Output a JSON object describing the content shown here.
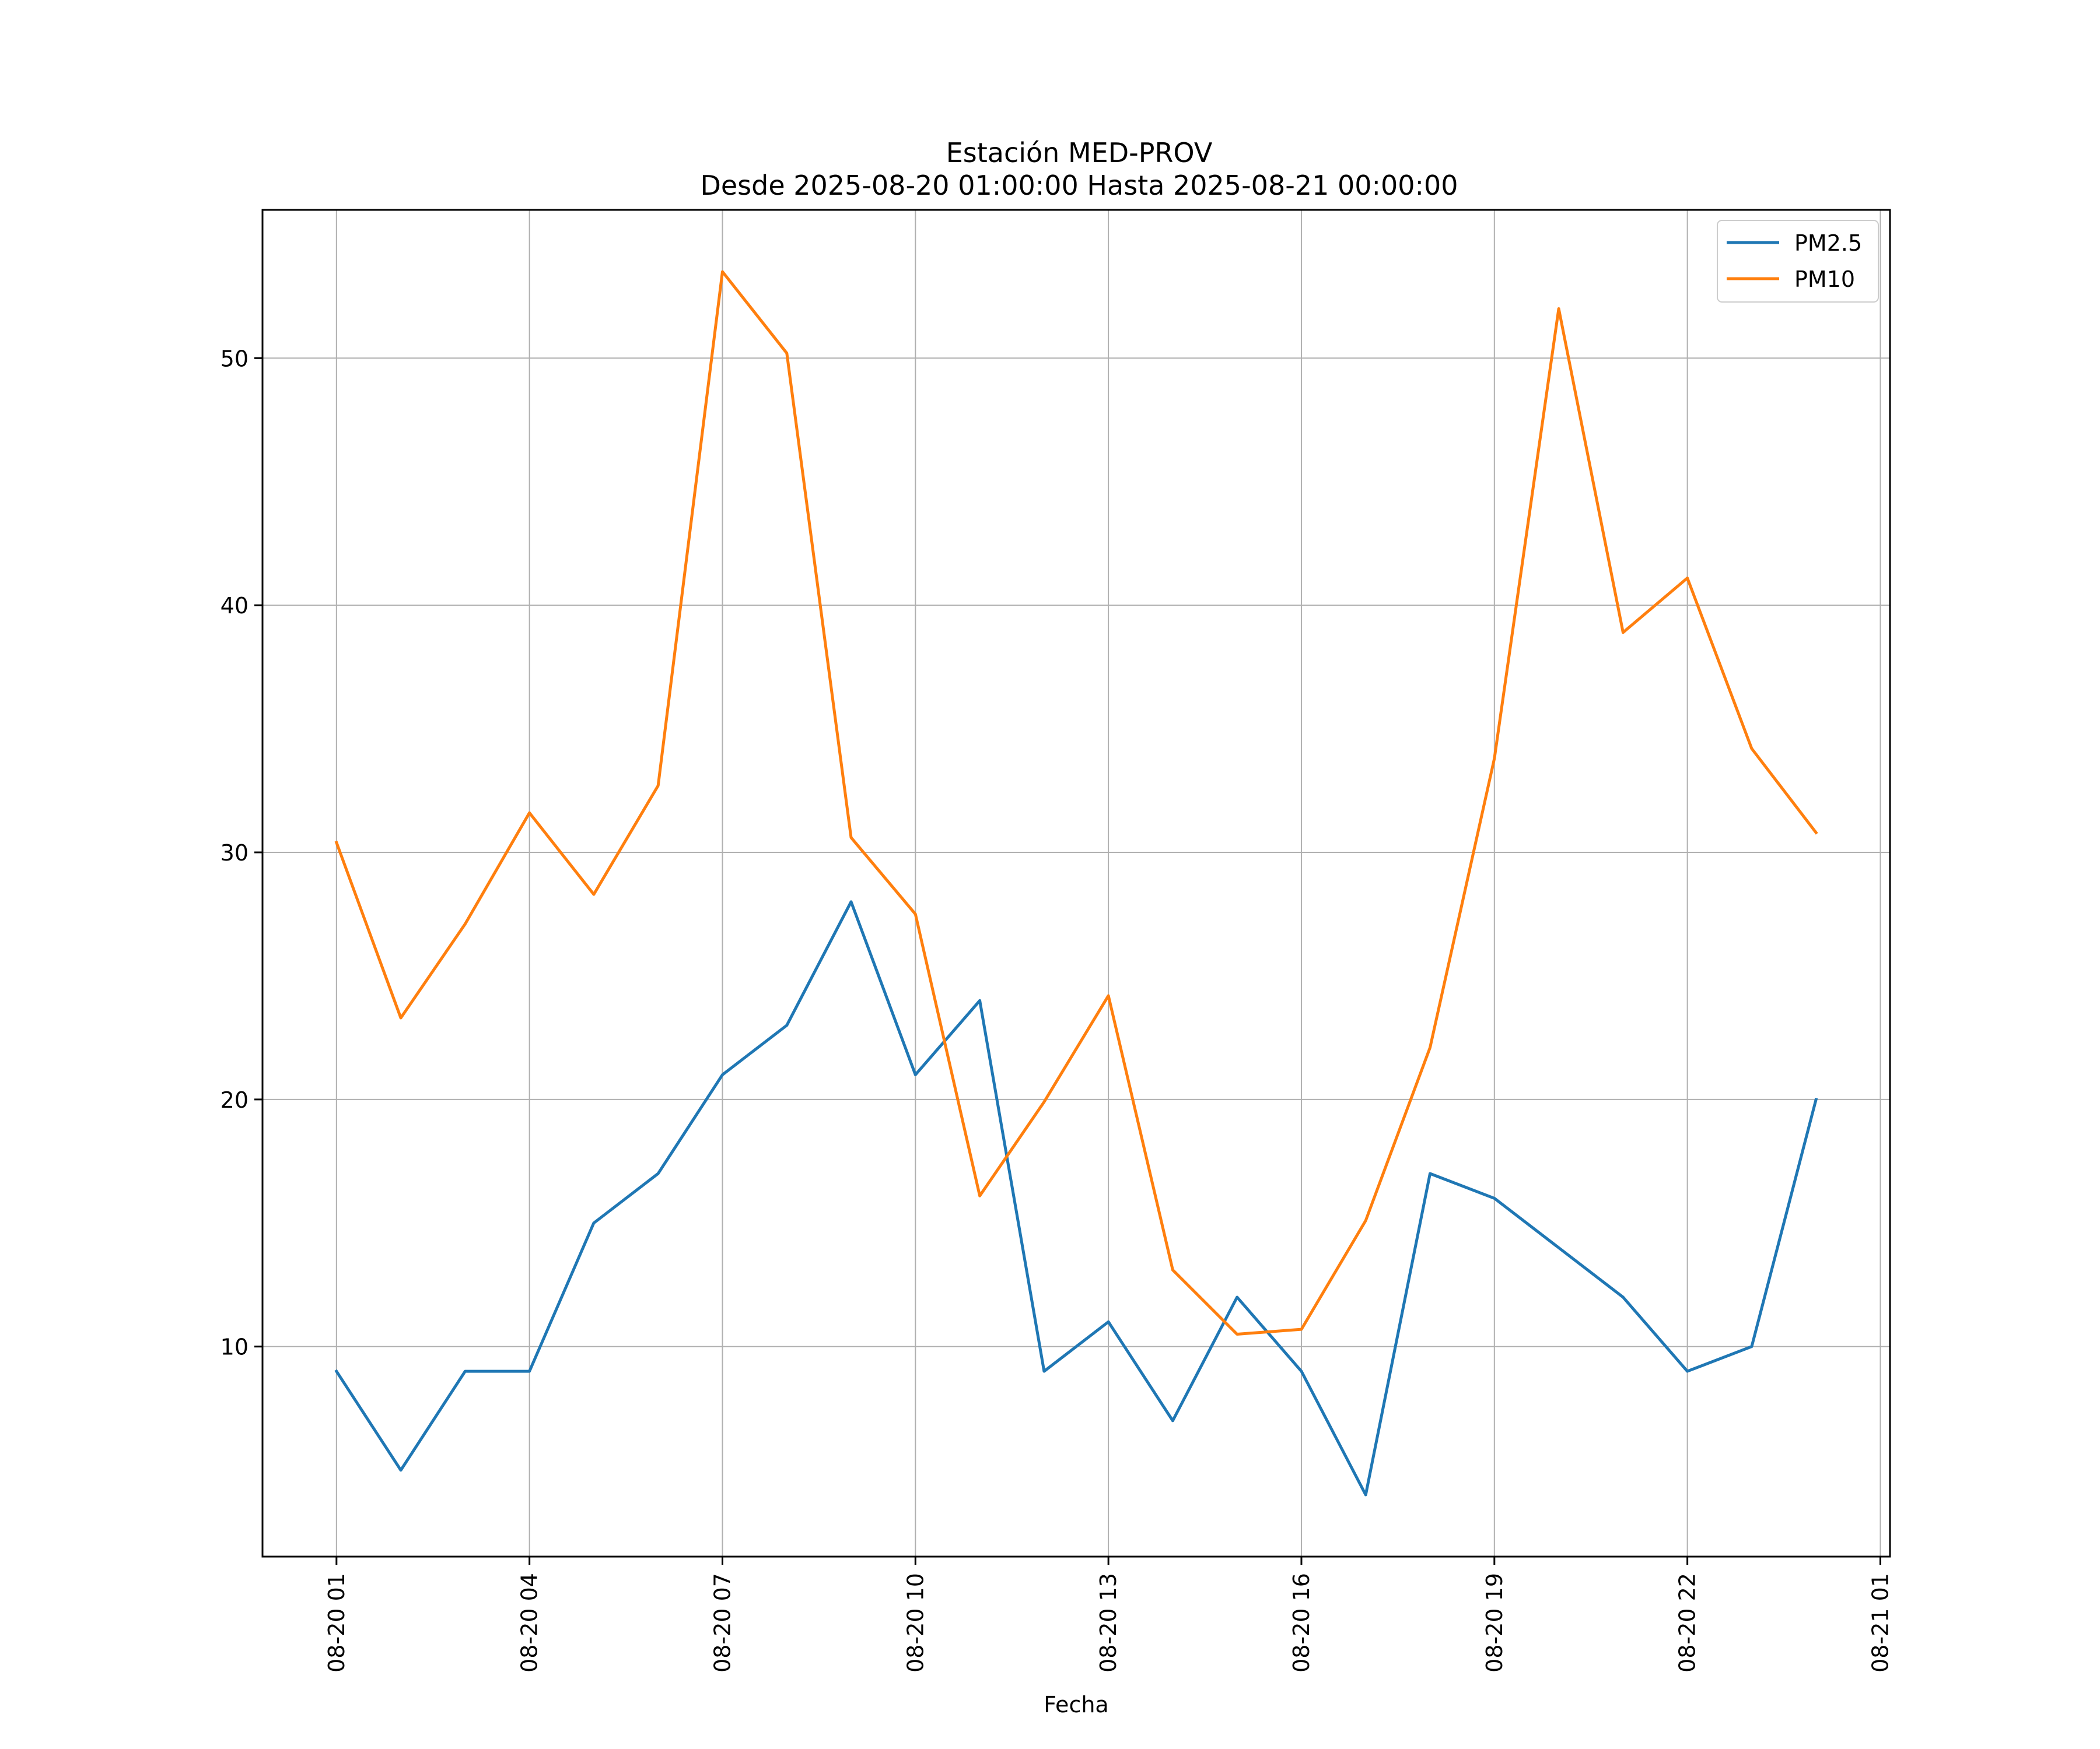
{
  "chart_data": {
    "type": "line",
    "title": "Estación MED-PROV",
    "subtitle": "Desde 2025-08-20 01:00:00 Hasta 2025-08-21 00:00:00",
    "xlabel": "Fecha",
    "ylabel": "",
    "grid": true,
    "legend_position": "top-right",
    "x": [
      "08-20 01",
      "08-20 02",
      "08-20 03",
      "08-20 04",
      "08-20 05",
      "08-20 06",
      "08-20 07",
      "08-20 08",
      "08-20 09",
      "08-20 10",
      "08-20 11",
      "08-20 12",
      "08-20 13",
      "08-20 14",
      "08-20 15",
      "08-20 16",
      "08-20 17",
      "08-20 18",
      "08-20 19",
      "08-20 20",
      "08-20 21",
      "08-20 22",
      "08-20 23",
      "08-21 00"
    ],
    "x_ticks": [
      "08-20 01",
      "08-20 04",
      "08-20 07",
      "08-20 10",
      "08-20 13",
      "08-20 16",
      "08-20 19",
      "08-20 22",
      "08-21 01"
    ],
    "x_tick_hours": [
      0,
      3,
      6,
      9,
      12,
      15,
      18,
      21,
      24
    ],
    "xlim_hours": [
      -1.15,
      24.15
    ],
    "y_ticks": [
      10,
      20,
      30,
      40,
      50
    ],
    "ylim": [
      1.5,
      56
    ],
    "series": [
      {
        "name": "PM2.5",
        "color": "#1f77b4",
        "values": [
          9,
          5,
          9,
          9,
          15,
          17,
          21,
          23,
          28,
          21,
          24,
          9,
          11,
          7,
          12,
          9,
          4,
          17,
          16,
          14,
          12,
          9,
          10,
          20
        ]
      },
      {
        "name": "PM10",
        "color": "#ff7f0e",
        "values": [
          30.4,
          23.3,
          27.1,
          31.6,
          28.3,
          32.7,
          53.5,
          50.2,
          30.6,
          27.5,
          16.1,
          19.9,
          24.2,
          13.1,
          10.5,
          10.7,
          15.1,
          22.1,
          33.8,
          52.0,
          38.9,
          41.1,
          34.2,
          30.8
        ]
      }
    ]
  }
}
